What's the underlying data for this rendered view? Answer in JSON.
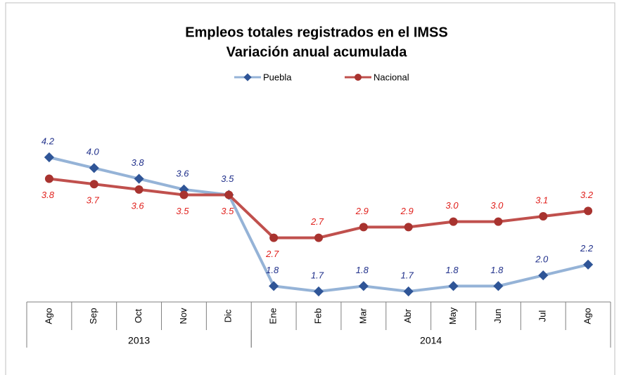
{
  "chart_data": {
    "type": "line",
    "title": "Empleos totales registrados en el IMSS",
    "subtitle": "Variación anual acumulada",
    "groups": [
      {
        "label": "2013",
        "categories": [
          "Ago",
          "Sep",
          "Oct",
          "Nov",
          "Dic"
        ]
      },
      {
        "label": "2014",
        "categories": [
          "Ene",
          "Feb",
          "Mar",
          "Abr",
          "May",
          "Jun",
          "Jul",
          "Ago"
        ]
      }
    ],
    "series": [
      {
        "name": "Puebla",
        "color": "#95b3d7",
        "marker_color": "#2f5597",
        "label_color": "#1f2f8a",
        "values": [
          4.2,
          4.0,
          3.8,
          3.6,
          3.5,
          1.8,
          1.7,
          1.8,
          1.7,
          1.8,
          1.8,
          2.0,
          2.2
        ],
        "value_labels": [
          "4.2",
          "4.0",
          "3.8",
          "3.6",
          "3.5",
          "1.8",
          "1.7",
          "1.8",
          "1.7",
          "1.8",
          "1.8",
          "2.0",
          "2.2"
        ]
      },
      {
        "name": "Nacional",
        "color": "#c0504d",
        "marker_color": "#a8332f",
        "label_color": "#e0201c",
        "values": [
          3.8,
          3.7,
          3.6,
          3.5,
          3.5,
          2.7,
          2.7,
          2.9,
          2.9,
          3.0,
          3.0,
          3.1,
          3.2
        ],
        "value_labels": [
          "3.8",
          "3.7",
          "3.6",
          "3.5",
          "3.5",
          "2.7",
          "2.7",
          "2.9",
          "2.9",
          "3.0",
          "3.0",
          "3.1",
          "3.2"
        ]
      }
    ]
  }
}
